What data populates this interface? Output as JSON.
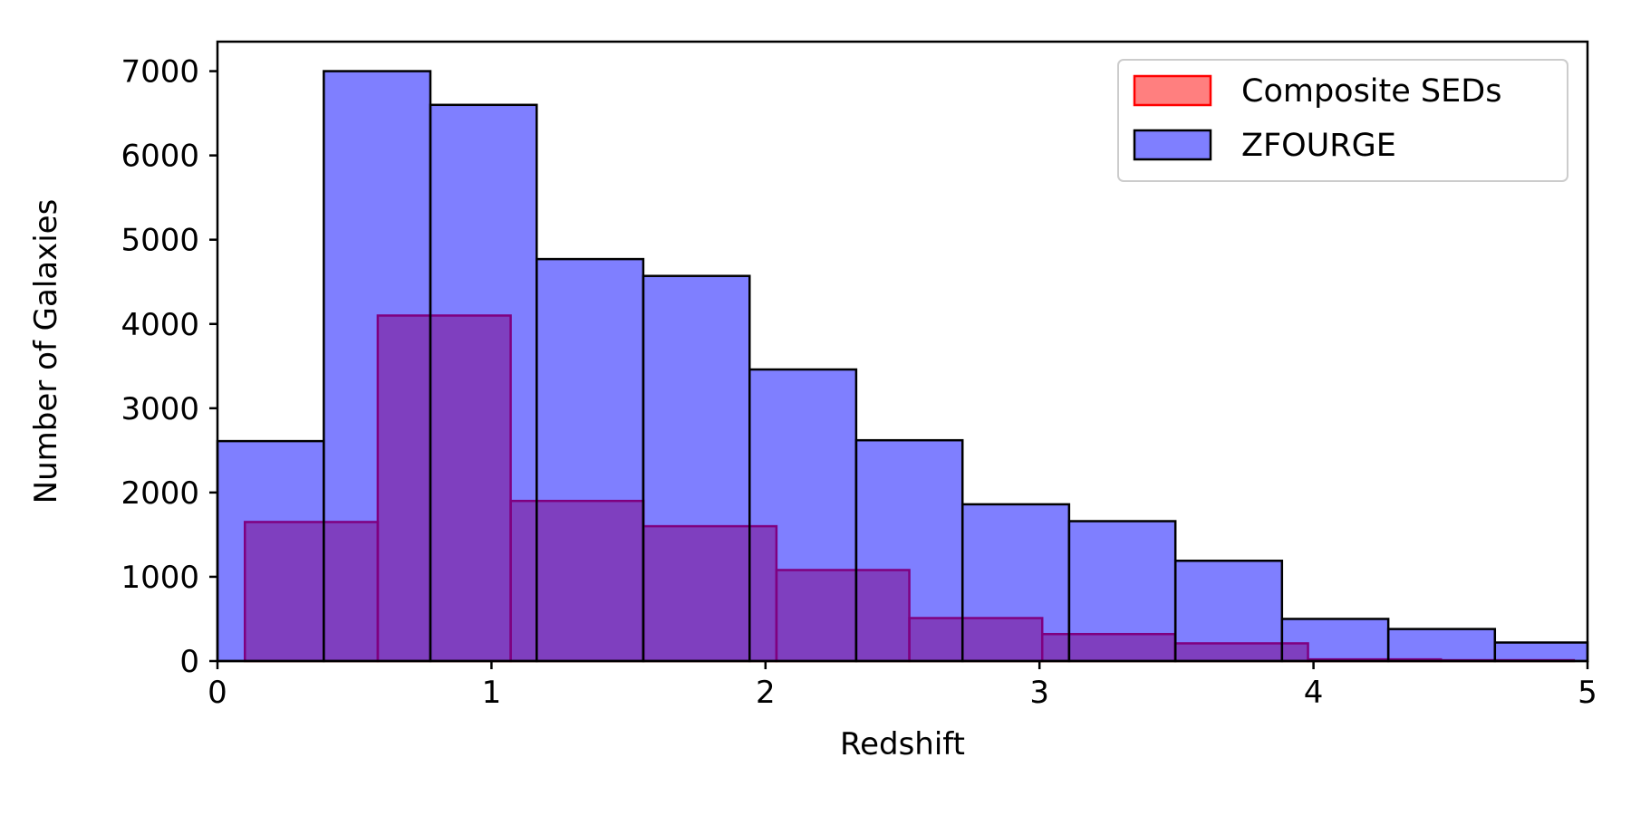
{
  "chart_data": {
    "type": "bar",
    "xlabel": "Redshift",
    "ylabel": "Number of Galaxies",
    "xlim": [
      0,
      5
    ],
    "ylim": [
      0,
      7350
    ],
    "x_ticks": [
      0,
      1,
      2,
      3,
      4,
      5
    ],
    "y_ticks": [
      0,
      1000,
      2000,
      3000,
      4000,
      5000,
      6000,
      7000
    ],
    "grid": false,
    "legend_position": "top-right",
    "series": [
      {
        "name": "Composite SEDs",
        "face_color": "#ff0000",
        "edge_color": "#ff0000",
        "alpha": 0.5,
        "bin_edges": [
          0.1,
          0.585,
          1.07,
          1.555,
          2.04,
          2.525,
          3.01,
          3.495,
          3.98,
          4.465,
          4.95
        ],
        "values": [
          1650,
          4100,
          1900,
          1600,
          1080,
          510,
          320,
          210,
          20,
          10
        ]
      },
      {
        "name": "ZFOURGE",
        "face_color": "#0000ff",
        "edge_color": "#000000",
        "alpha": 0.5,
        "bin_edges": [
          0.0,
          0.388,
          0.777,
          1.165,
          1.554,
          1.942,
          2.331,
          2.719,
          3.108,
          3.496,
          3.885,
          4.273,
          4.662,
          5.05
        ],
        "values": [
          2610,
          7000,
          6600,
          4770,
          4570,
          3460,
          2620,
          1860,
          1660,
          1190,
          500,
          380,
          220
        ]
      }
    ]
  }
}
